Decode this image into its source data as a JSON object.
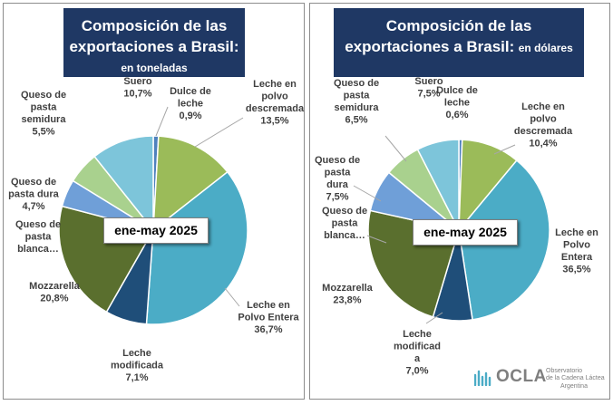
{
  "chart_data": [
    {
      "type": "pie",
      "title": "Composición de las exportaciones a Brasil:",
      "subtitle": "en toneladas",
      "period": "ene-may 2025",
      "slices": [
        {
          "name": "Dulce de leche",
          "value": 0.9,
          "label_value": "0,9%",
          "color": "#4f81bd"
        },
        {
          "name": "Leche en polvo descremada",
          "value": 13.5,
          "label_value": "13,5%",
          "color": "#9bbb59"
        },
        {
          "name": "Leche en Polvo Entera",
          "value": 36.7,
          "label_value": "36,7%",
          "color": "#4bacc6"
        },
        {
          "name": "Leche modificada",
          "value": 7.1,
          "label_value": "7,1%",
          "color": "#1f4e79"
        },
        {
          "name": "Mozzarella",
          "value": 20.8,
          "label_value": "20,8%",
          "color": "#5a6f2e"
        },
        {
          "name": "Queso de pasta blanca…",
          "value": 0.0,
          "label_value": "",
          "color": "#c0c0c0"
        },
        {
          "name": "Queso de pasta dura",
          "value": 4.7,
          "label_value": "4,7%",
          "color": "#6f9fd8"
        },
        {
          "name": "Queso de pasta semidura",
          "value": 5.5,
          "label_value": "5,5%",
          "color": "#a9d18e"
        },
        {
          "name": "Suero",
          "value": 10.7,
          "label_value": "10,7%",
          "color": "#7dc5da"
        }
      ]
    },
    {
      "type": "pie",
      "title": "Composición de las exportaciones a Brasil:",
      "subtitle": "en dólares",
      "period": "ene-may 2025",
      "slices": [
        {
          "name": "Dulce de leche",
          "value": 0.6,
          "label_value": "0,6%",
          "color": "#4f81bd"
        },
        {
          "name": "Leche en polvo descremada",
          "value": 10.4,
          "label_value": "10,4%",
          "color": "#9bbb59"
        },
        {
          "name": "Leche en Polvo Entera",
          "value": 36.5,
          "label_value": "36,5%",
          "color": "#4bacc6"
        },
        {
          "name": "Leche modificada",
          "value": 7.0,
          "label_value": "7,0%",
          "color": "#1f4e79"
        },
        {
          "name": "Mozzarella",
          "value": 23.8,
          "label_value": "23,8%",
          "color": "#5a6f2e"
        },
        {
          "name": "Queso de pasta blanca…",
          "value": 0.0,
          "label_value": "",
          "color": "#c0c0c0"
        },
        {
          "name": "Queso de pasta dura",
          "value": 7.5,
          "label_value": "7,5%",
          "color": "#6f9fd8"
        },
        {
          "name": "Queso de pasta semidura",
          "value": 6.5,
          "label_value": "6,5%",
          "color": "#a9d18e"
        },
        {
          "name": "Suero",
          "value": 7.5,
          "label_value": "7,5%",
          "color": "#7dc5da"
        }
      ]
    }
  ],
  "logo": {
    "brand": "OCLA",
    "line1": "Observatorio",
    "line2": "de la Cadena Láctea",
    "line3": "Argentina"
  }
}
